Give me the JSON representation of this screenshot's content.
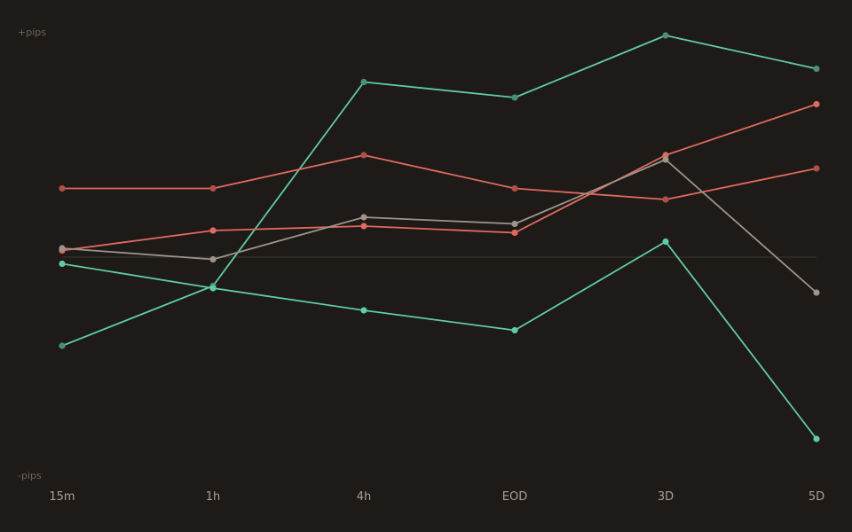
{
  "chart_data": {
    "type": "line",
    "title": "",
    "xlabel": "",
    "ylabel_top": "+pips",
    "ylabel_bottom": "-pips",
    "categories": [
      "15m",
      "1h",
      "4h",
      "EOD",
      "3D",
      "5D"
    ],
    "ylim": [
      -100,
      100
    ],
    "zero_line": true,
    "grid": false,
    "series": [
      {
        "color": "#5fcca4",
        "marker": "#4b8f74",
        "values": [
          -40,
          -13,
          79,
          72,
          100,
          85
        ]
      },
      {
        "color": "#5fcca4",
        "marker": "#5fcca4",
        "values": [
          -3,
          -14,
          -24,
          -33,
          7,
          -82
        ]
      },
      {
        "color": "#e06a5f",
        "marker": "#b05048",
        "values": [
          31,
          31,
          46,
          31,
          26,
          40
        ]
      },
      {
        "color": "#e06a5f",
        "marker": "#e06a5f",
        "values": [
          3,
          12,
          14,
          11,
          46,
          69
        ]
      },
      {
        "color": "#9d948b",
        "marker": "#9d948b",
        "values": [
          4,
          -1,
          18,
          15,
          44,
          -16
        ]
      }
    ]
  }
}
